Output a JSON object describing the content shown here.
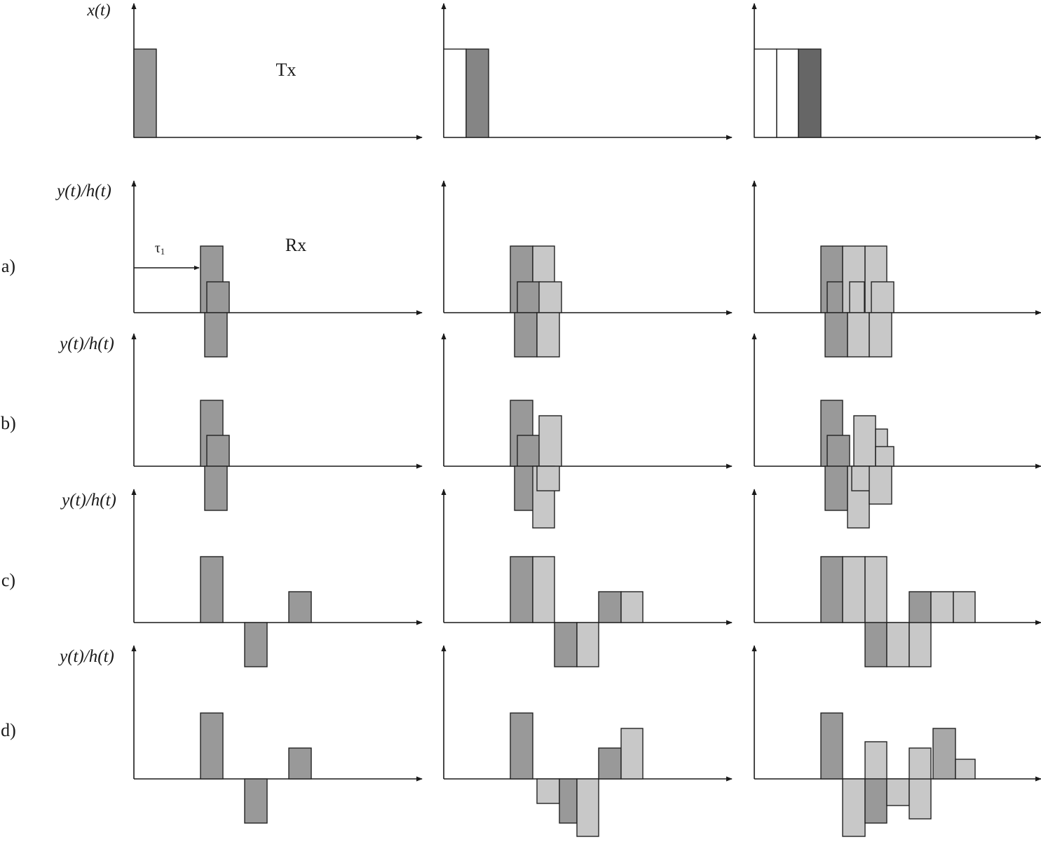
{
  "labels": {
    "x_axis_label": "x(t)",
    "y_axis_label": "y(t)/h(t)",
    "tx": "Tx",
    "rx": "Rx",
    "tau": "τ",
    "tau_sub": "1"
  },
  "row_labels": [
    "a)",
    "b)",
    "c)",
    "d)"
  ],
  "colors": {
    "axis": "#1a1a1a",
    "outline": "#222222",
    "white": "#ffffff",
    "gray_medium": "#999999",
    "gray_dark": "#858585",
    "gray_darker": "#666666",
    "gray_light": "#c8c8c8",
    "gray_mid": "#a8a8a8"
  }
}
